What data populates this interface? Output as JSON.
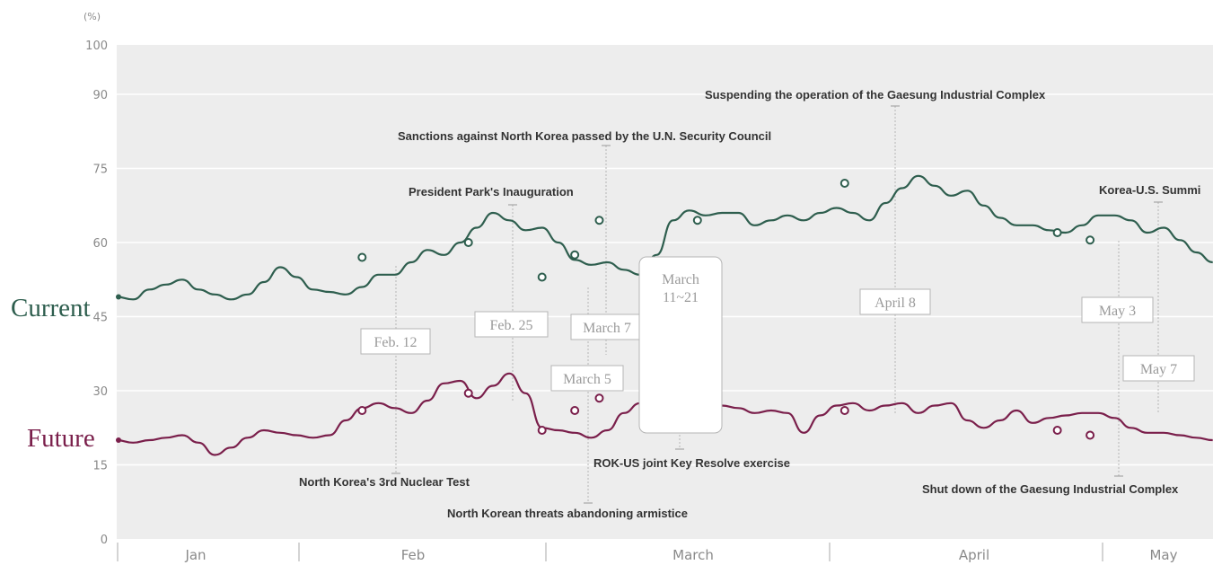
{
  "chart_data": {
    "type": "line",
    "unit_label": "(%)",
    "yticks": [
      0,
      15,
      30,
      45,
      60,
      75,
      90,
      100
    ],
    "ylim": [
      0,
      100
    ],
    "months": [
      "Jan",
      "Feb",
      "March",
      "April",
      "May"
    ],
    "colors": {
      "current": "#2e5e4e",
      "future": "#7a1f4b",
      "plot_bg": "#ededed",
      "grid": "#ffffff"
    },
    "series": [
      {
        "name": "Current",
        "x": [
          0,
          2,
          4,
          6,
          8,
          10,
          12,
          14,
          16,
          18,
          20,
          22,
          24,
          26,
          28,
          30,
          32,
          34,
          36,
          38,
          40,
          42,
          44,
          46,
          48,
          50,
          52,
          54,
          56,
          58,
          60,
          62,
          64,
          66,
          68,
          70,
          72,
          74,
          76,
          78,
          80,
          82,
          84,
          86,
          88,
          90,
          92,
          94,
          96,
          98,
          100,
          102,
          104,
          106,
          108,
          110,
          112,
          114,
          116,
          118,
          120,
          122,
          124,
          126,
          128,
          130,
          132,
          134
        ],
        "values": [
          49,
          48.5,
          50.5,
          51.5,
          52.5,
          50.5,
          49.5,
          48.5,
          49.5,
          52,
          55,
          53,
          50.5,
          50,
          49.5,
          51,
          53.5,
          53.5,
          56,
          58.5,
          57.5,
          60,
          63,
          66,
          64.5,
          62.5,
          63,
          60,
          56.5,
          55.5,
          56,
          54.5,
          53.5,
          57.5,
          64.5,
          66.5,
          65.5,
          66,
          66,
          63.5,
          64.5,
          65.5,
          64.5,
          66,
          67,
          66,
          64.5,
          68,
          71,
          73.5,
          71.5,
          69.5,
          70.5,
          67.5,
          65,
          63.5,
          63.5,
          62.5,
          62,
          63.5,
          65.5,
          65.5,
          64.5,
          62,
          63,
          60.5,
          58,
          56
        ]
      },
      {
        "name": "Future",
        "x": [
          0,
          2,
          4,
          6,
          8,
          10,
          12,
          14,
          16,
          18,
          20,
          22,
          24,
          26,
          28,
          30,
          32,
          34,
          36,
          38,
          40,
          42,
          44,
          46,
          48,
          50,
          52,
          54,
          56,
          58,
          60,
          62,
          64,
          66,
          68,
          70,
          72,
          74,
          76,
          78,
          80,
          82,
          84,
          86,
          88,
          90,
          92,
          94,
          96,
          98,
          100,
          102,
          104,
          106,
          108,
          110,
          112,
          114,
          116,
          118,
          120,
          122,
          124,
          126,
          128,
          130,
          132,
          134
        ],
        "values": [
          20,
          19.5,
          20,
          20.5,
          21,
          19.5,
          17,
          18.5,
          20.5,
          22,
          21.5,
          21,
          20.5,
          21,
          24,
          26.5,
          27.5,
          26.5,
          25.5,
          28,
          31.5,
          32,
          28.5,
          31,
          33.5,
          29.5,
          22.5,
          22,
          21.5,
          20.5,
          22,
          25.5,
          27.5,
          28.5,
          27.5,
          26,
          27.5,
          27,
          26.5,
          25.5,
          26,
          25.5,
          21.5,
          25,
          27,
          27.5,
          26,
          27,
          27.5,
          25.5,
          27,
          27.5,
          24,
          22.5,
          24,
          26,
          23.5,
          24.5,
          25,
          25.5,
          25.5,
          24.5,
          22.5,
          21.5,
          21.5,
          21,
          20.5,
          20
        ]
      }
    ],
    "current_markers": [
      {
        "x": 30,
        "v": 57
      },
      {
        "x": 43,
        "v": 60
      },
      {
        "x": 52,
        "v": 53
      },
      {
        "x": 56,
        "v": 57.5
      },
      {
        "x": 59,
        "v": 64.5
      },
      {
        "x": 71,
        "v": 64.5
      },
      {
        "x": 89,
        "v": 72
      },
      {
        "x": 115,
        "v": 62
      },
      {
        "x": 119,
        "v": 60.5
      }
    ],
    "future_markers": [
      {
        "x": 30,
        "v": 26
      },
      {
        "x": 43,
        "v": 29.5
      },
      {
        "x": 52,
        "v": 22
      },
      {
        "x": 56,
        "v": 26
      },
      {
        "x": 59,
        "v": 28.5
      },
      {
        "x": 71,
        "v": 26
      },
      {
        "x": 89,
        "v": 26
      },
      {
        "x": 115,
        "v": 22
      },
      {
        "x": 119,
        "v": 21
      }
    ],
    "events_above": [
      "President Park's Inauguration",
      "Sanctions against North Korea passed by the U.N. Security Council",
      "Suspending the operation of the Gaesung Industrial Complex",
      "Korea-U.S. Summi"
    ],
    "events_below": [
      "North Korea's 3rd Nuclear Test",
      "North Korean threats abandoning armistice",
      "ROK-US joint Key Resolve exercise",
      "Shut down of the Gaesung Industrial Complex"
    ],
    "date_tags": [
      "Feb. 12",
      "Feb. 25",
      "March 5",
      "March 7",
      "April 8",
      "May 3",
      "May 7"
    ],
    "range_tag": [
      "March",
      "11~21"
    ]
  }
}
